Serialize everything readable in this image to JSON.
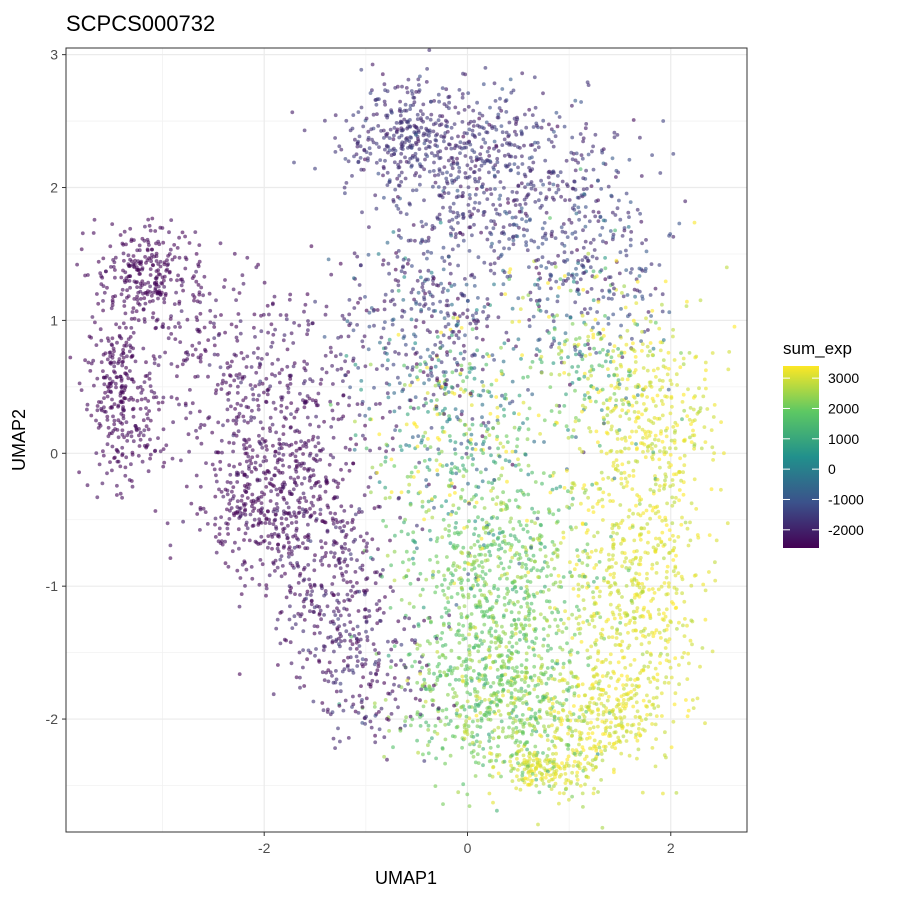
{
  "chart_data": {
    "type": "scatter",
    "title": "SCPCS000732",
    "xlabel": "UMAP1",
    "ylabel": "UMAP2",
    "xlim": [
      -3.95,
      2.75
    ],
    "ylim": [
      -2.85,
      3.05
    ],
    "x_ticks": [
      -2,
      0,
      2
    ],
    "x_tick_labels": [
      "-2",
      "0",
      "2"
    ],
    "y_ticks": [
      -2,
      -1,
      0,
      1,
      2,
      3
    ],
    "y_tick_labels": [
      "-2",
      "-1",
      "0",
      "1",
      "2",
      "3"
    ],
    "grid": true,
    "point_alpha": 0.6,
    "color_scale": {
      "name": "sum_exp",
      "palette": "viridis",
      "min": -2600,
      "max": 3400,
      "stops": [
        "#440154",
        "#3b528b",
        "#21908c",
        "#5dc863",
        "#fde725"
      ],
      "breaks": [
        3000,
        2000,
        1000,
        0,
        -1000,
        -2000
      ],
      "break_labels": [
        "3000",
        "2000",
        "1000",
        "0",
        "-1000",
        "-2000"
      ]
    },
    "legend_position": "right",
    "series": [
      {
        "clusters": [
          {
            "x": -3.15,
            "y": 1.35,
            "sx": 0.28,
            "sy": 0.18,
            "n": 260,
            "cmean": -2500,
            "csd": 80
          },
          {
            "x": -3.45,
            "y": 0.55,
            "sx": 0.14,
            "sy": 0.25,
            "n": 190,
            "cmean": -2500,
            "csd": 80
          },
          {
            "x": -3.35,
            "y": 0.05,
            "sx": 0.18,
            "sy": 0.18,
            "n": 80,
            "cmean": -2480,
            "csd": 90
          },
          {
            "x": -2.8,
            "y": 0.75,
            "sx": 0.35,
            "sy": 0.4,
            "n": 150,
            "cmean": -2450,
            "csd": 150
          },
          {
            "x": -1.9,
            "y": -0.3,
            "sx": 0.35,
            "sy": 0.35,
            "n": 520,
            "cmean": -2450,
            "csd": 150
          },
          {
            "x": -1.8,
            "y": 0.55,
            "sx": 0.45,
            "sy": 0.35,
            "n": 260,
            "cmean": -2300,
            "csd": 250
          },
          {
            "x": -1.35,
            "y": -1.0,
            "sx": 0.3,
            "sy": 0.35,
            "n": 250,
            "cmean": -2300,
            "csd": 300
          },
          {
            "x": -1.0,
            "y": -1.65,
            "sx": 0.35,
            "sy": 0.3,
            "n": 200,
            "cmean": -2200,
            "csd": 400
          },
          {
            "x": -0.55,
            "y": 2.4,
            "sx": 0.35,
            "sy": 0.22,
            "n": 330,
            "cmean": -1800,
            "csd": 250
          },
          {
            "x": 0.3,
            "y": 2.1,
            "sx": 0.55,
            "sy": 0.35,
            "n": 520,
            "cmean": -1700,
            "csd": 350
          },
          {
            "x": 1.15,
            "y": 1.45,
            "sx": 0.4,
            "sy": 0.35,
            "n": 260,
            "cmean": -1500,
            "csd": 500
          },
          {
            "x": -0.4,
            "y": 1.05,
            "sx": 0.4,
            "sy": 0.35,
            "n": 300,
            "cmean": -1600,
            "csd": 700
          },
          {
            "x": -0.1,
            "y": 0.15,
            "sx": 0.45,
            "sy": 0.45,
            "n": 420,
            "cmean": 1200,
            "csd": 1800
          },
          {
            "x": 0.35,
            "y": -1.0,
            "sx": 0.45,
            "sy": 0.45,
            "n": 650,
            "cmean": 2050,
            "csd": 500
          },
          {
            "x": 0.05,
            "y": -1.75,
            "sx": 0.4,
            "sy": 0.35,
            "n": 380,
            "cmean": 2000,
            "csd": 500
          },
          {
            "x": 0.55,
            "y": -2.05,
            "sx": 0.35,
            "sy": 0.3,
            "n": 280,
            "cmean": 2300,
            "csd": 600
          },
          {
            "x": 0.75,
            "y": -2.4,
            "sx": 0.2,
            "sy": 0.08,
            "n": 130,
            "cmean": 3100,
            "csd": 200
          },
          {
            "x": 1.75,
            "y": 0.15,
            "sx": 0.35,
            "sy": 0.5,
            "n": 420,
            "cmean": 3100,
            "csd": 250
          },
          {
            "x": 1.65,
            "y": -1.15,
            "sx": 0.35,
            "sy": 0.45,
            "n": 450,
            "cmean": 3100,
            "csd": 250
          },
          {
            "x": 1.3,
            "y": -2.0,
            "sx": 0.3,
            "sy": 0.25,
            "n": 280,
            "cmean": 3100,
            "csd": 250
          },
          {
            "x": 1.15,
            "y": 0.7,
            "sx": 0.35,
            "sy": 0.4,
            "n": 220,
            "cmean": 1800,
            "csd": 1500
          }
        ]
      }
    ]
  }
}
